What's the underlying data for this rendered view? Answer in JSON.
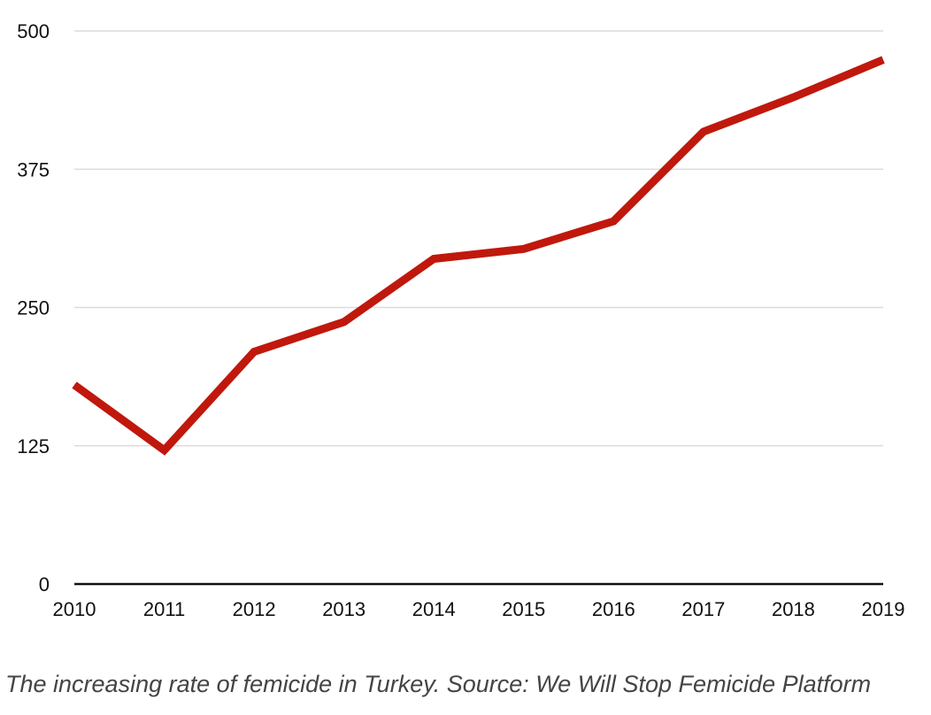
{
  "chart_data": {
    "type": "line",
    "title": "",
    "xlabel": "",
    "ylabel": "",
    "x": [
      "2010",
      "2011",
      "2012",
      "2013",
      "2014",
      "2015",
      "2016",
      "2017",
      "2018",
      "2019"
    ],
    "series": [
      {
        "values": [
          180,
          121,
          210,
          237,
          294,
          303,
          328,
          409,
          440,
          474
        ],
        "color": "#c0180c"
      }
    ],
    "ylim": [
      0,
      500
    ],
    "yticks": [
      "0",
      "125",
      "250",
      "375",
      "500"
    ],
    "grid": true,
    "legend": "none"
  },
  "caption": "The increasing rate of femicide in Turkey. Source: We Will Stop Femicide Platform"
}
